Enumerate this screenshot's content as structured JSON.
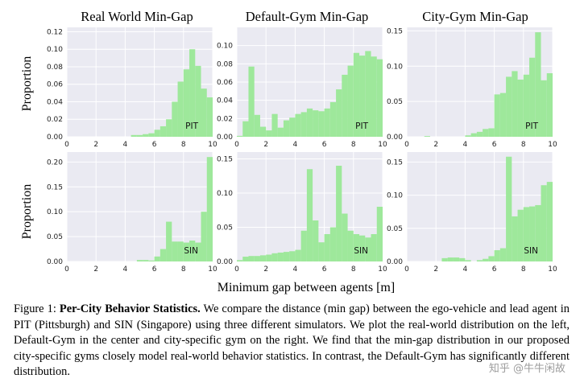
{
  "figure": {
    "col_titles": [
      "Real World Min-Gap",
      "Default-Gym Min-Gap",
      "City-Gym Min-Gap"
    ],
    "row_ylabel": "Proportion",
    "xlabel": "Minimum gap between agents [m]",
    "x_ticks": [
      "0",
      "2",
      "4",
      "6",
      "8",
      "10"
    ],
    "colors": {
      "bar": "#9ee89b",
      "panel_bg": "#eaeaf2",
      "grid": "#ffffff"
    }
  },
  "chart_data": [
    {
      "type": "bar",
      "title": "Real World Min-Gap",
      "ylabel": "Proportion",
      "annotation": "PIT",
      "xlim": [
        0,
        10
      ],
      "ylim": [
        0,
        0.125
      ],
      "y_ticks": [
        "0.00",
        "0.02",
        "0.04",
        "0.06",
        "0.08",
        "0.10",
        "0.12"
      ],
      "bins": {
        "start": 0,
        "width": 0.4
      },
      "values": [
        0,
        0,
        0,
        0,
        0,
        0,
        0,
        0,
        0,
        0,
        0,
        0.002,
        0.002,
        0.003,
        0.004,
        0.008,
        0.012,
        0.02,
        0.04,
        0.063,
        0.077,
        0.1,
        0.081,
        0.055,
        0.045
      ]
    },
    {
      "type": "bar",
      "title": "Default-Gym Min-Gap",
      "ylabel": "",
      "annotation": "PIT",
      "xlim": [
        0,
        10
      ],
      "ylim": [
        0,
        0.12
      ],
      "y_ticks": [
        "0.00",
        "0.02",
        "0.04",
        "0.06",
        "0.08",
        "0.10"
      ],
      "bins": {
        "start": 0,
        "width": 0.4
      },
      "values": [
        0.001,
        0.017,
        0.077,
        0.024,
        0.011,
        0.007,
        0.025,
        0.01,
        0.018,
        0.021,
        0.025,
        0.027,
        0.031,
        0.029,
        0.028,
        0.031,
        0.038,
        0.052,
        0.068,
        0.078,
        0.092,
        0.089,
        0.094,
        0.088,
        0.085
      ]
    },
    {
      "type": "bar",
      "title": "City-Gym Min-Gap",
      "ylabel": "",
      "annotation": "PIT",
      "xlim": [
        0,
        10
      ],
      "ylim": [
        0,
        0.155
      ],
      "y_ticks": [
        "0.00",
        "0.05",
        "0.10",
        "0.15"
      ],
      "bins": {
        "start": 0,
        "width": 0.4
      },
      "values": [
        0,
        0,
        0,
        0.001,
        0,
        0,
        0,
        0,
        0,
        0,
        0.002,
        0.005,
        0.007,
        0.011,
        0.012,
        0.06,
        0.062,
        0.085,
        0.093,
        0.081,
        0.088,
        0.112,
        0.148,
        0.08,
        0.09
      ]
    },
    {
      "type": "bar",
      "title": "",
      "ylabel": "Proportion",
      "annotation": "SIN",
      "xlim": [
        0,
        10
      ],
      "ylim": [
        0,
        0.22
      ],
      "y_ticks": [
        "0.00",
        "0.05",
        "0.10",
        "0.15",
        "0.20"
      ],
      "bins": {
        "start": 0,
        "width": 0.4
      },
      "values": [
        0,
        0,
        0,
        0,
        0,
        0,
        0,
        0,
        0,
        0,
        0,
        0,
        0.003,
        0.003,
        0.002,
        0.01,
        0.025,
        0.08,
        0.04,
        0.04,
        0.038,
        0.042,
        0.038,
        0.1,
        0.21
      ]
    },
    {
      "type": "bar",
      "title": "",
      "ylabel": "",
      "annotation": "SIN",
      "xlim": [
        0,
        10
      ],
      "ylim": [
        0,
        0.16
      ],
      "y_ticks": [
        "0.00",
        "0.05",
        "0.10",
        "0.15"
      ],
      "bins": {
        "start": 0,
        "width": 0.4
      },
      "values": [
        0.002,
        0.007,
        0.008,
        0.008,
        0.009,
        0.01,
        0.012,
        0.013,
        0.014,
        0.015,
        0.017,
        0.045,
        0.135,
        0.06,
        0.028,
        0.04,
        0.05,
        0.14,
        0.07,
        0.045,
        0.04,
        0.038,
        0.035,
        0.04,
        0.08
      ]
    },
    {
      "type": "bar",
      "title": "",
      "ylabel": "",
      "annotation": "SIN",
      "xlim": [
        0,
        10
      ],
      "ylim": [
        0,
        0.165
      ],
      "y_ticks": [
        "0.00",
        "0.05",
        "0.10",
        "0.15"
      ],
      "bins": {
        "start": 0,
        "width": 0.4
      },
      "values": [
        0,
        0,
        0,
        0,
        0,
        0,
        0.005,
        0.006,
        0.006,
        0.005,
        0.002,
        0,
        0.002,
        0.004,
        0.008,
        0.017,
        0.02,
        0.158,
        0.068,
        0.078,
        0.082,
        0.083,
        0.085,
        0.115,
        0.12
      ]
    }
  ],
  "caption": {
    "label": "Figure 1: ",
    "bold": "Per-City Behavior Statistics.",
    "text": " We compare the distance (min gap) between the ego-vehicle and lead agent in PIT (Pittsburgh) and SIN (Singapore) using three different simulators. We plot the real-world distribution on the left, Default-Gym in the center and city-specific gym on the right. We find that the min-gap distribution in our proposed city-specific gyms closely model real-world behavior statistics. In contrast, the Default-Gym has significantly different distribution."
  },
  "watermark": "知乎 @牛牛闲故"
}
